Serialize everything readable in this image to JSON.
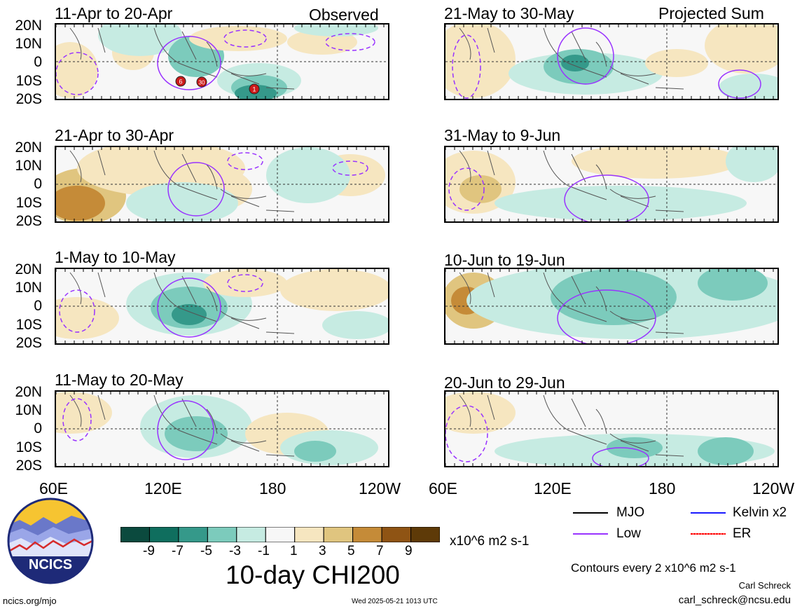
{
  "panels": [
    {
      "id": "p1",
      "period": "11-Apr to 20-Apr",
      "label": "Observed"
    },
    {
      "id": "p2",
      "period": "21-May to 30-May",
      "label": "Projected Sum"
    },
    {
      "id": "p3",
      "period": "21-Apr to 30-Apr",
      "label": ""
    },
    {
      "id": "p4",
      "period": "31-May to 9-Jun",
      "label": ""
    },
    {
      "id": "p5",
      "period": "1-May to 10-May",
      "label": ""
    },
    {
      "id": "p6",
      "period": "10-Jun to 19-Jun",
      "label": ""
    },
    {
      "id": "p7",
      "period": "11-May to 20-May",
      "label": ""
    },
    {
      "id": "p8",
      "period": "20-Jun to 29-Jun",
      "label": ""
    }
  ],
  "lat_labels": [
    "20N",
    "10N",
    "0",
    "10S",
    "20S"
  ],
  "lon_labels": [
    "60E",
    "120E",
    "180",
    "120W"
  ],
  "cyclone_markers": [
    "6",
    "30",
    "1"
  ],
  "colorbar": {
    "ticks": [
      "-9",
      "-7",
      "-5",
      "-3",
      "-1",
      "1",
      "3",
      "5",
      "7",
      "9"
    ],
    "colors": [
      "#0b4a3e",
      "#0f6e5e",
      "#35998a",
      "#7ccbbc",
      "#c6ebe2",
      "#f7f7f7",
      "#f6e6c0",
      "#e0c57f",
      "#c58b38",
      "#8f5414",
      "#5e3a08"
    ],
    "units": "x10^6 m2 s-1",
    "title": "10-day CHI200"
  },
  "legend": {
    "items": [
      {
        "label": "MJO",
        "color": "#000000"
      },
      {
        "label": "Kelvin x2",
        "color": "#1a1aff"
      },
      {
        "label": "Low",
        "color": "#9933ff"
      },
      {
        "label": "ER",
        "color": "#ff0000"
      }
    ],
    "contours_note": "Contours every 2 x10^6 m2 s-1",
    "author": "Carl Schreck",
    "email": "carl_schreck@ncsu.edu"
  },
  "logo": {
    "text": "NCICS"
  },
  "footer": {
    "url": "ncics.org/mjo",
    "timestamp": "Wed 2025-05-21 1013 UTC"
  }
}
